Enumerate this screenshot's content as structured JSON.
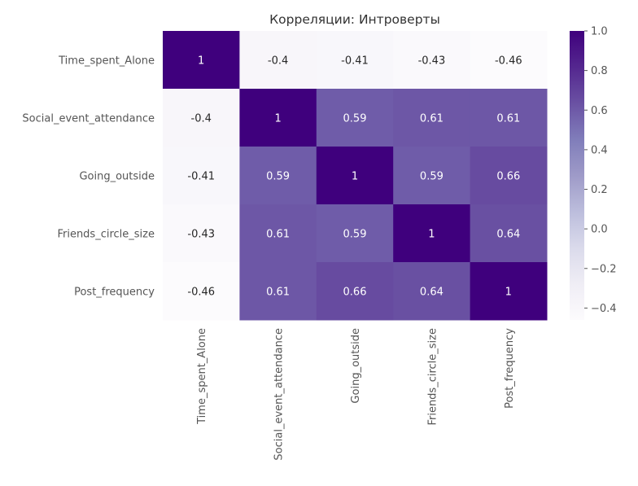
{
  "chart_data": {
    "type": "heatmap",
    "title": "Корреляции: Интроверты",
    "xlabel": "",
    "ylabel": "",
    "row_labels": [
      "Time_spent_Alone",
      "Social_event_attendance",
      "Going_outside",
      "Friends_circle_size",
      "Post_frequency"
    ],
    "col_labels": [
      "Time_spent_Alone",
      "Social_event_attendance",
      "Going_outside",
      "Friends_circle_size",
      "Post_frequency"
    ],
    "values": [
      [
        1,
        -0.4,
        -0.41,
        -0.43,
        -0.46
      ],
      [
        -0.4,
        1,
        0.59,
        0.61,
        0.61
      ],
      [
        -0.41,
        0.59,
        1,
        0.59,
        0.66
      ],
      [
        -0.43,
        0.61,
        0.59,
        1,
        0.64
      ],
      [
        -0.46,
        0.61,
        0.66,
        0.64,
        1
      ]
    ],
    "annotations": [
      [
        "1",
        "-0.4",
        "-0.41",
        "-0.43",
        "-0.46"
      ],
      [
        "-0.4",
        "1",
        "0.59",
        "0.61",
        "0.61"
      ],
      [
        "-0.41",
        "0.59",
        "1",
        "0.59",
        "0.66"
      ],
      [
        "-0.43",
        "0.61",
        "0.59",
        "1",
        "0.64"
      ],
      [
        "-0.46",
        "0.61",
        "0.66",
        "0.64",
        "1"
      ]
    ],
    "colormap": "Purples",
    "vmin": -0.46,
    "vmax": 1.0,
    "colorbar": {
      "ticks": [
        1.0,
        0.8,
        0.6,
        0.4,
        0.2,
        0.0,
        -0.2,
        -0.4
      ],
      "tick_labels": [
        "1.0",
        "0.8",
        "0.6",
        "0.4",
        "0.2",
        "0.0",
        "−0.2",
        "−0.4"
      ],
      "placement": "right"
    },
    "grid": false,
    "colors": {
      "dark_text": "#262626",
      "light_text": "#ffffff",
      "label_text": "#555555"
    }
  }
}
